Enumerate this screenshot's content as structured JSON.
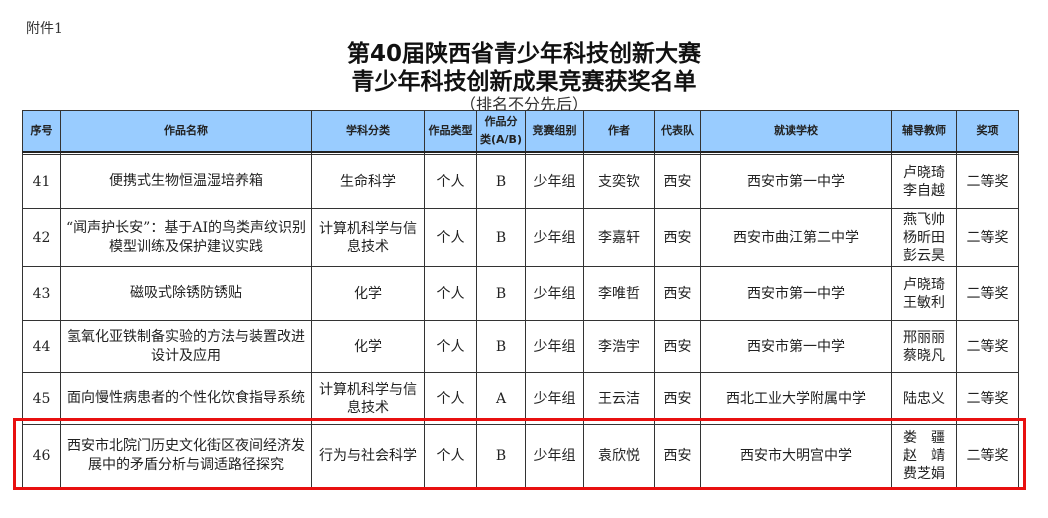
{
  "attachment": "附件1",
  "title_line1": "第40届陕西省青少年科技创新大赛",
  "title_line2": "青少年科技创新成果竞赛获奖名单",
  "subtitle": "（排名不分先后）",
  "headers": [
    "序号",
    "作品名称",
    "学科分类",
    "作品类型",
    "作品分类(A/B)",
    "竞赛组别",
    "作者",
    "代表队",
    "就读学校",
    "辅导教师",
    "奖项"
  ],
  "rows": [
    {
      "no": "41",
      "name": "便携式生物恒温湿培养箱",
      "subject": "生命科学",
      "type": "个人",
      "cls": "B",
      "group": "少年组",
      "author": "支奕钦",
      "team": "西安",
      "school": "西安市第一中学",
      "teachers": "卢晓琦\n李自越",
      "award": "二等奖"
    },
    {
      "no": "42",
      "name": "“闻声护长安”：基于AI的鸟类声纹识别模型训练及保护建议实践",
      "subject": "计算机科学与信息技术",
      "type": "个人",
      "cls": "B",
      "group": "少年组",
      "author": "李嘉轩",
      "team": "西安",
      "school": "西安市曲江第二中学",
      "teachers": "燕飞帅\n杨昕田\n彭云昊",
      "award": "二等奖"
    },
    {
      "no": "43",
      "name": "磁吸式除锈防锈贴",
      "subject": "化学",
      "type": "个人",
      "cls": "B",
      "group": "少年组",
      "author": "李唯哲",
      "team": "西安",
      "school": "西安市第一中学",
      "teachers": "卢晓琦\n王敏利",
      "award": "二等奖"
    },
    {
      "no": "44",
      "name": "氢氧化亚铁制备实验的方法与装置改进设计及应用",
      "subject": "化学",
      "type": "个人",
      "cls": "B",
      "group": "少年组",
      "author": "李浩宇",
      "team": "西安",
      "school": "西安市第一中学",
      "teachers": "邢丽丽\n蔡晓凡",
      "award": "二等奖"
    },
    {
      "no": "45",
      "name": "面向慢性病患者的个性化饮食指导系统",
      "subject": "计算机科学与信息技术",
      "type": "个人",
      "cls": "A",
      "group": "少年组",
      "author": "王云洁",
      "team": "西安",
      "school": "西北工业大学附属中学",
      "teachers": "陆忠义",
      "award": "二等奖"
    },
    {
      "no": "46",
      "name": "西安市北院门历史文化街区夜间经济发展中的矛盾分析与调适路径探究",
      "subject": "行为与社会科学",
      "type": "个人",
      "cls": "B",
      "group": "少年组",
      "author": "袁欣悦",
      "team": "西安",
      "school": "西安市大明宫中学",
      "teachers": "娄　疆\n赵　靖\n费芝娟",
      "award": "二等奖"
    }
  ],
  "highlight_color": "#e81010",
  "header_color": "#99ccff"
}
